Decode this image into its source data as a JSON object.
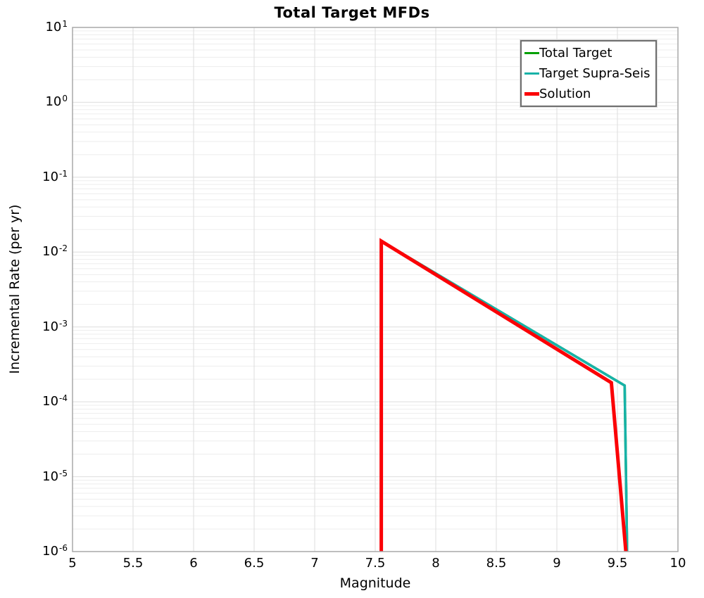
{
  "chart_data": {
    "type": "line",
    "title": "Total Target MFDs",
    "xlabel": "Magnitude",
    "ylabel": "Incremental Rate (per yr)",
    "x_axis": {
      "min": 5,
      "max": 10,
      "tick_values": [
        5,
        5.5,
        6,
        6.5,
        7,
        7.5,
        8,
        8.5,
        9,
        9.5,
        10
      ],
      "tick_labels": [
        "5",
        "5.5",
        "6",
        "6.5",
        "7",
        "7.5",
        "8",
        "8.5",
        "9",
        "9.5",
        "10"
      ],
      "gridline_step": 0.5
    },
    "y_axis": {
      "scale": "log",
      "min": 1e-06,
      "max": 10,
      "tick_exponents": [
        1,
        0,
        -1,
        -2,
        -3,
        -4,
        -5,
        -6
      ],
      "tick_base": "10",
      "minor_gridlines": true
    },
    "grid": {
      "major_color": "#dedede",
      "minor_color": "#ededed",
      "frame_color": "#a8a8a8",
      "background": "#ffffff"
    },
    "legend": {
      "position": "top-right",
      "border_color": "#6e6e6e",
      "background": "#ffffff",
      "entries": [
        "Total Target",
        "Target Supra-Seis",
        "Solution"
      ]
    },
    "series": [
      {
        "name": "Total Target",
        "color": "#00a000",
        "line_width": 3.5,
        "points": [
          [
            7.55,
            1e-06
          ],
          [
            7.55,
            0.014
          ],
          [
            9.56,
            0.000165
          ],
          [
            9.58,
            1e-06
          ]
        ]
      },
      {
        "name": "Target Supra-Seis",
        "color": "#17b2a8",
        "line_width": 3.5,
        "points": [
          [
            7.55,
            1e-06
          ],
          [
            7.55,
            0.014
          ],
          [
            9.56,
            0.000165
          ],
          [
            9.58,
            1e-06
          ]
        ]
      },
      {
        "name": "Solution",
        "color": "#fb0006",
        "line_width": 5,
        "points": [
          [
            7.55,
            1e-06
          ],
          [
            7.55,
            0.014
          ],
          [
            9.45,
            0.00018
          ],
          [
            9.57,
            1e-06
          ]
        ]
      }
    ]
  }
}
